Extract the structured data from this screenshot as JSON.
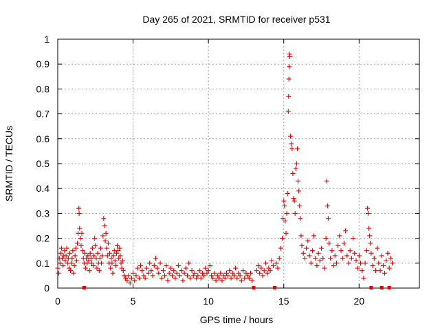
{
  "chart_data": {
    "type": "scatter",
    "title": "Day 265 of 2021, SRMTID for receiver p531",
    "xlabel": "GPS time / hours",
    "ylabel": "SRMTID / TECUs",
    "xlim": [
      0,
      24
    ],
    "ylim": [
      0,
      1
    ],
    "xticks": [
      0,
      5,
      10,
      15,
      20
    ],
    "xtick_labels": [
      "0",
      "5",
      "10",
      "15",
      "20"
    ],
    "yticks": [
      0,
      0.1,
      0.2,
      0.3,
      0.4,
      0.5,
      0.6,
      0.7,
      0.8,
      0.9,
      1
    ],
    "ytick_labels": [
      "0",
      "0.1",
      "0.2",
      "0.3",
      "0.4",
      "0.5",
      "0.6",
      "0.7",
      "0.8",
      "0.9",
      "1"
    ],
    "grid": true,
    "marker": "+",
    "color": "#e00000",
    "series": [
      {
        "name": "SRMTID",
        "points": [
          [
            0.0,
            0.08
          ],
          [
            0.05,
            0.06
          ],
          [
            0.1,
            0.12
          ],
          [
            0.15,
            0.1
          ],
          [
            0.2,
            0.14
          ],
          [
            0.25,
            0.16
          ],
          [
            0.3,
            0.12
          ],
          [
            0.35,
            0.09
          ],
          [
            0.4,
            0.13
          ],
          [
            0.45,
            0.15
          ],
          [
            0.5,
            0.11
          ],
          [
            0.55,
            0.13
          ],
          [
            0.6,
            0.16
          ],
          [
            0.65,
            0.1
          ],
          [
            0.7,
            0.12
          ],
          [
            0.75,
            0.08
          ],
          [
            0.8,
            0.14
          ],
          [
            0.85,
            0.07
          ],
          [
            0.9,
            0.1
          ],
          [
            0.95,
            0.12
          ],
          [
            1.0,
            0.15
          ],
          [
            1.05,
            0.06
          ],
          [
            1.1,
            0.09
          ],
          [
            1.15,
            0.13
          ],
          [
            1.2,
            0.16
          ],
          [
            1.25,
            0.11
          ],
          [
            1.3,
            0.18
          ],
          [
            1.35,
            0.22
          ],
          [
            1.4,
            0.32
          ],
          [
            1.42,
            0.3
          ],
          [
            1.45,
            0.24
          ],
          [
            1.5,
            0.2
          ],
          [
            1.55,
            0.17
          ],
          [
            1.6,
            0.22
          ],
          [
            1.65,
            0.15
          ],
          [
            1.7,
            0.12
          ],
          [
            1.75,
            0.1
          ],
          [
            1.8,
            0.14
          ],
          [
            1.85,
            0.08
          ],
          [
            1.9,
            0.12
          ],
          [
            1.95,
            0.1
          ],
          [
            2.0,
            0.13
          ],
          [
            2.05,
            0.11
          ],
          [
            2.1,
            0.07
          ],
          [
            2.15,
            0.14
          ],
          [
            2.2,
            0.12
          ],
          [
            2.25,
            0.1
          ],
          [
            2.3,
            0.16
          ],
          [
            2.35,
            0.09
          ],
          [
            2.4,
            0.13
          ],
          [
            2.45,
            0.2
          ],
          [
            2.5,
            0.17
          ],
          [
            2.55,
            0.12
          ],
          [
            2.6,
            0.08
          ],
          [
            2.65,
            0.14
          ],
          [
            2.7,
            0.1
          ],
          [
            2.75,
            0.07
          ],
          [
            2.8,
            0.12
          ],
          [
            2.85,
            0.16
          ],
          [
            2.9,
            0.1
          ],
          [
            2.95,
            0.13
          ],
          [
            3.0,
            0.21
          ],
          [
            3.05,
            0.28
          ],
          [
            3.1,
            0.25
          ],
          [
            3.15,
            0.19
          ],
          [
            3.2,
            0.22
          ],
          [
            3.25,
            0.16
          ],
          [
            3.3,
            0.13
          ],
          [
            3.35,
            0.18
          ],
          [
            3.4,
            0.1
          ],
          [
            3.45,
            0.14
          ],
          [
            3.5,
            0.08
          ],
          [
            3.55,
            0.12
          ],
          [
            3.6,
            0.1
          ],
          [
            3.65,
            0.06
          ],
          [
            3.7,
            0.13
          ],
          [
            3.75,
            0.15
          ],
          [
            3.8,
            0.11
          ],
          [
            3.85,
            0.09
          ],
          [
            3.9,
            0.14
          ],
          [
            3.95,
            0.17
          ],
          [
            4.0,
            0.15
          ],
          [
            4.05,
            0.12
          ],
          [
            4.1,
            0.16
          ],
          [
            4.15,
            0.13
          ],
          [
            4.2,
            0.1
          ],
          [
            4.25,
            0.08
          ],
          [
            4.3,
            0.11
          ],
          [
            4.35,
            0.07
          ],
          [
            4.4,
            0.05
          ],
          [
            4.5,
            0.04
          ],
          [
            4.6,
            0.03
          ],
          [
            4.7,
            0.05
          ],
          [
            4.8,
            0.02
          ],
          [
            4.9,
            0.04
          ],
          [
            5.0,
            0.06
          ],
          [
            5.1,
            0.03
          ],
          [
            5.2,
            0.05
          ],
          [
            5.3,
            0.08
          ],
          [
            5.4,
            0.04
          ],
          [
            5.5,
            0.09
          ],
          [
            5.6,
            0.07
          ],
          [
            5.7,
            0.05
          ],
          [
            5.8,
            0.04
          ],
          [
            5.9,
            0.08
          ],
          [
            6.0,
            0.06
          ],
          [
            6.1,
            0.1
          ],
          [
            6.2,
            0.07
          ],
          [
            6.3,
            0.05
          ],
          [
            6.4,
            0.09
          ],
          [
            6.5,
            0.12
          ],
          [
            6.6,
            0.08
          ],
          [
            6.7,
            0.06
          ],
          [
            6.8,
            0.1
          ],
          [
            6.9,
            0.04
          ],
          [
            7.0,
            0.07
          ],
          [
            7.1,
            0.05
          ],
          [
            7.2,
            0.09
          ],
          [
            7.3,
            0.03
          ],
          [
            7.4,
            0.06
          ],
          [
            7.5,
            0.08
          ],
          [
            7.6,
            0.05
          ],
          [
            7.7,
            0.07
          ],
          [
            7.8,
            0.04
          ],
          [
            7.9,
            0.06
          ],
          [
            8.0,
            0.09
          ],
          [
            8.1,
            0.05
          ],
          [
            8.2,
            0.07
          ],
          [
            8.3,
            0.03
          ],
          [
            8.4,
            0.06
          ],
          [
            8.5,
            0.08
          ],
          [
            8.6,
            0.05
          ],
          [
            8.7,
            0.1
          ],
          [
            8.8,
            0.04
          ],
          [
            8.9,
            0.07
          ],
          [
            9.0,
            0.05
          ],
          [
            9.1,
            0.06
          ],
          [
            9.2,
            0.04
          ],
          [
            9.3,
            0.05
          ],
          [
            9.4,
            0.07
          ],
          [
            9.5,
            0.04
          ],
          [
            9.6,
            0.06
          ],
          [
            9.7,
            0.05
          ],
          [
            9.8,
            0.08
          ],
          [
            9.9,
            0.06
          ],
          [
            10.0,
            0.07
          ],
          [
            10.1,
            0.09
          ],
          [
            10.2,
            0.05
          ],
          [
            10.3,
            0.04
          ],
          [
            10.4,
            0.06
          ],
          [
            10.5,
            0.03
          ],
          [
            10.6,
            0.05
          ],
          [
            10.7,
            0.04
          ],
          [
            10.8,
            0.06
          ],
          [
            10.9,
            0.03
          ],
          [
            11.0,
            0.05
          ],
          [
            11.1,
            0.04
          ],
          [
            11.2,
            0.06
          ],
          [
            11.3,
            0.05
          ],
          [
            11.4,
            0.07
          ],
          [
            11.5,
            0.04
          ],
          [
            11.6,
            0.06
          ],
          [
            11.7,
            0.05
          ],
          [
            11.8,
            0.08
          ],
          [
            11.9,
            0.04
          ],
          [
            12.0,
            0.06
          ],
          [
            12.1,
            0.05
          ],
          [
            12.2,
            0.03
          ],
          [
            12.3,
            0.07
          ],
          [
            12.4,
            0.04
          ],
          [
            12.5,
            0.06
          ],
          [
            12.6,
            0.05
          ],
          [
            12.7,
            0.04
          ],
          [
            12.8,
            0.06
          ],
          [
            12.9,
            0.03
          ],
          [
            13.2,
            0.07
          ],
          [
            13.3,
            0.09
          ],
          [
            13.4,
            0.06
          ],
          [
            13.5,
            0.08
          ],
          [
            13.6,
            0.05
          ],
          [
            13.7,
            0.07
          ],
          [
            13.8,
            0.1
          ],
          [
            13.9,
            0.06
          ],
          [
            14.0,
            0.08
          ],
          [
            14.1,
            0.07
          ],
          [
            14.2,
            0.11
          ],
          [
            14.3,
            0.09
          ],
          [
            14.5,
            0.1
          ],
          [
            14.6,
            0.08
          ],
          [
            14.7,
            0.12
          ],
          [
            14.8,
            0.16
          ],
          [
            14.9,
            0.2
          ],
          [
            14.95,
            0.28
          ],
          [
            15.0,
            0.35
          ],
          [
            15.05,
            0.33
          ],
          [
            15.1,
            0.27
          ],
          [
            15.15,
            0.22
          ],
          [
            15.2,
            0.3
          ],
          [
            15.25,
            0.38
          ],
          [
            15.3,
            0.71
          ],
          [
            15.32,
            0.77
          ],
          [
            15.34,
            0.84
          ],
          [
            15.36,
            0.89
          ],
          [
            15.38,
            0.94
          ],
          [
            15.4,
            0.93
          ],
          [
            15.45,
            0.61
          ],
          [
            15.5,
            0.58
          ],
          [
            15.55,
            0.56
          ],
          [
            15.6,
            0.46
          ],
          [
            15.65,
            0.36
          ],
          [
            15.7,
            0.35
          ],
          [
            15.75,
            0.3
          ],
          [
            15.8,
            0.48
          ],
          [
            15.85,
            0.5
          ],
          [
            15.9,
            0.56
          ],
          [
            15.95,
            0.43
          ],
          [
            16.0,
            0.39
          ],
          [
            16.05,
            0.33
          ],
          [
            16.1,
            0.28
          ],
          [
            16.15,
            0.21
          ],
          [
            16.2,
            0.17
          ],
          [
            16.3,
            0.14
          ],
          [
            16.4,
            0.12
          ],
          [
            16.5,
            0.16
          ],
          [
            16.6,
            0.19
          ],
          [
            16.7,
            0.13
          ],
          [
            16.8,
            0.1
          ],
          [
            16.9,
            0.15
          ],
          [
            17.0,
            0.21
          ],
          [
            17.1,
            0.12
          ],
          [
            17.2,
            0.09
          ],
          [
            17.3,
            0.14
          ],
          [
            17.4,
            0.11
          ],
          [
            17.5,
            0.16
          ],
          [
            17.6,
            0.12
          ],
          [
            17.7,
            0.08
          ],
          [
            17.8,
            0.2
          ],
          [
            17.85,
            0.43
          ],
          [
            17.9,
            0.33
          ],
          [
            17.95,
            0.28
          ],
          [
            18.0,
            0.18
          ],
          [
            18.1,
            0.12
          ],
          [
            18.2,
            0.15
          ],
          [
            18.3,
            0.09
          ],
          [
            18.4,
            0.13
          ],
          [
            18.5,
            0.1
          ],
          [
            18.6,
            0.17
          ],
          [
            18.7,
            0.21
          ],
          [
            18.8,
            0.15
          ],
          [
            18.9,
            0.12
          ],
          [
            19.0,
            0.18
          ],
          [
            19.1,
            0.23
          ],
          [
            19.2,
            0.13
          ],
          [
            19.3,
            0.1
          ],
          [
            19.4,
            0.15
          ],
          [
            19.5,
            0.12
          ],
          [
            19.6,
            0.2
          ],
          [
            19.7,
            0.14
          ],
          [
            19.8,
            0.11
          ],
          [
            19.9,
            0.08
          ],
          [
            20.0,
            0.13
          ],
          [
            20.1,
            0.1
          ],
          [
            20.2,
            0.07
          ],
          [
            20.3,
            0.04
          ],
          [
            20.4,
            0.1
          ],
          [
            20.5,
            0.15
          ],
          [
            20.55,
            0.32
          ],
          [
            20.6,
            0.3
          ],
          [
            20.65,
            0.24
          ],
          [
            20.7,
            0.21
          ],
          [
            20.75,
            0.18
          ],
          [
            20.8,
            0.14
          ],
          [
            20.9,
            0.09
          ],
          [
            21.0,
            0.12
          ],
          [
            21.1,
            0.07
          ],
          [
            21.2,
            0.16
          ],
          [
            21.3,
            0.1
          ],
          [
            21.4,
            0.07
          ],
          [
            21.5,
            0.13
          ],
          [
            21.6,
            0.09
          ],
          [
            21.7,
            0.06
          ],
          [
            21.8,
            0.11
          ],
          [
            21.9,
            0.14
          ],
          [
            22.0,
            0.08
          ],
          [
            22.1,
            0.12
          ],
          [
            22.2,
            0.1
          ]
        ]
      }
    ],
    "baseline_markers_x": [
      1.75,
      13.0,
      14.4,
      20.8,
      21.5,
      22.0
    ]
  }
}
